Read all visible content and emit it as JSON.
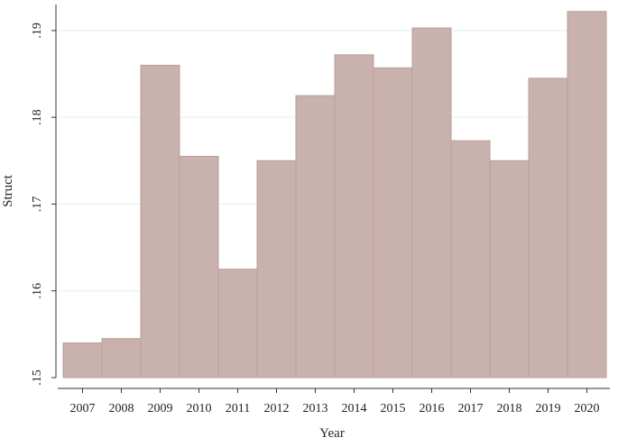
{
  "chart_data": {
    "type": "bar",
    "title": "",
    "xlabel": "Year",
    "ylabel": "Struct",
    "categories": [
      "2007",
      "2008",
      "2009",
      "2010",
      "2011",
      "2012",
      "2013",
      "2014",
      "2015",
      "2016",
      "2017",
      "2018",
      "2019",
      "2020"
    ],
    "values": [
      0.154,
      0.1545,
      0.186,
      0.1755,
      0.1625,
      0.175,
      0.1825,
      0.1872,
      0.1857,
      0.1903,
      0.1773,
      0.175,
      0.1845,
      0.1922
    ],
    "ylim": [
      0.15,
      0.193
    ],
    "yticks": [
      0.15,
      0.16,
      0.17,
      0.18,
      0.19
    ],
    "ytick_labels": [
      ".15",
      ".16",
      ".17",
      ".18",
      ".19"
    ],
    "grid": true,
    "colors": {
      "bar_fill": "#c9b1ad",
      "bar_edge": "#b99f9a",
      "grid": "#e6eef2"
    }
  }
}
